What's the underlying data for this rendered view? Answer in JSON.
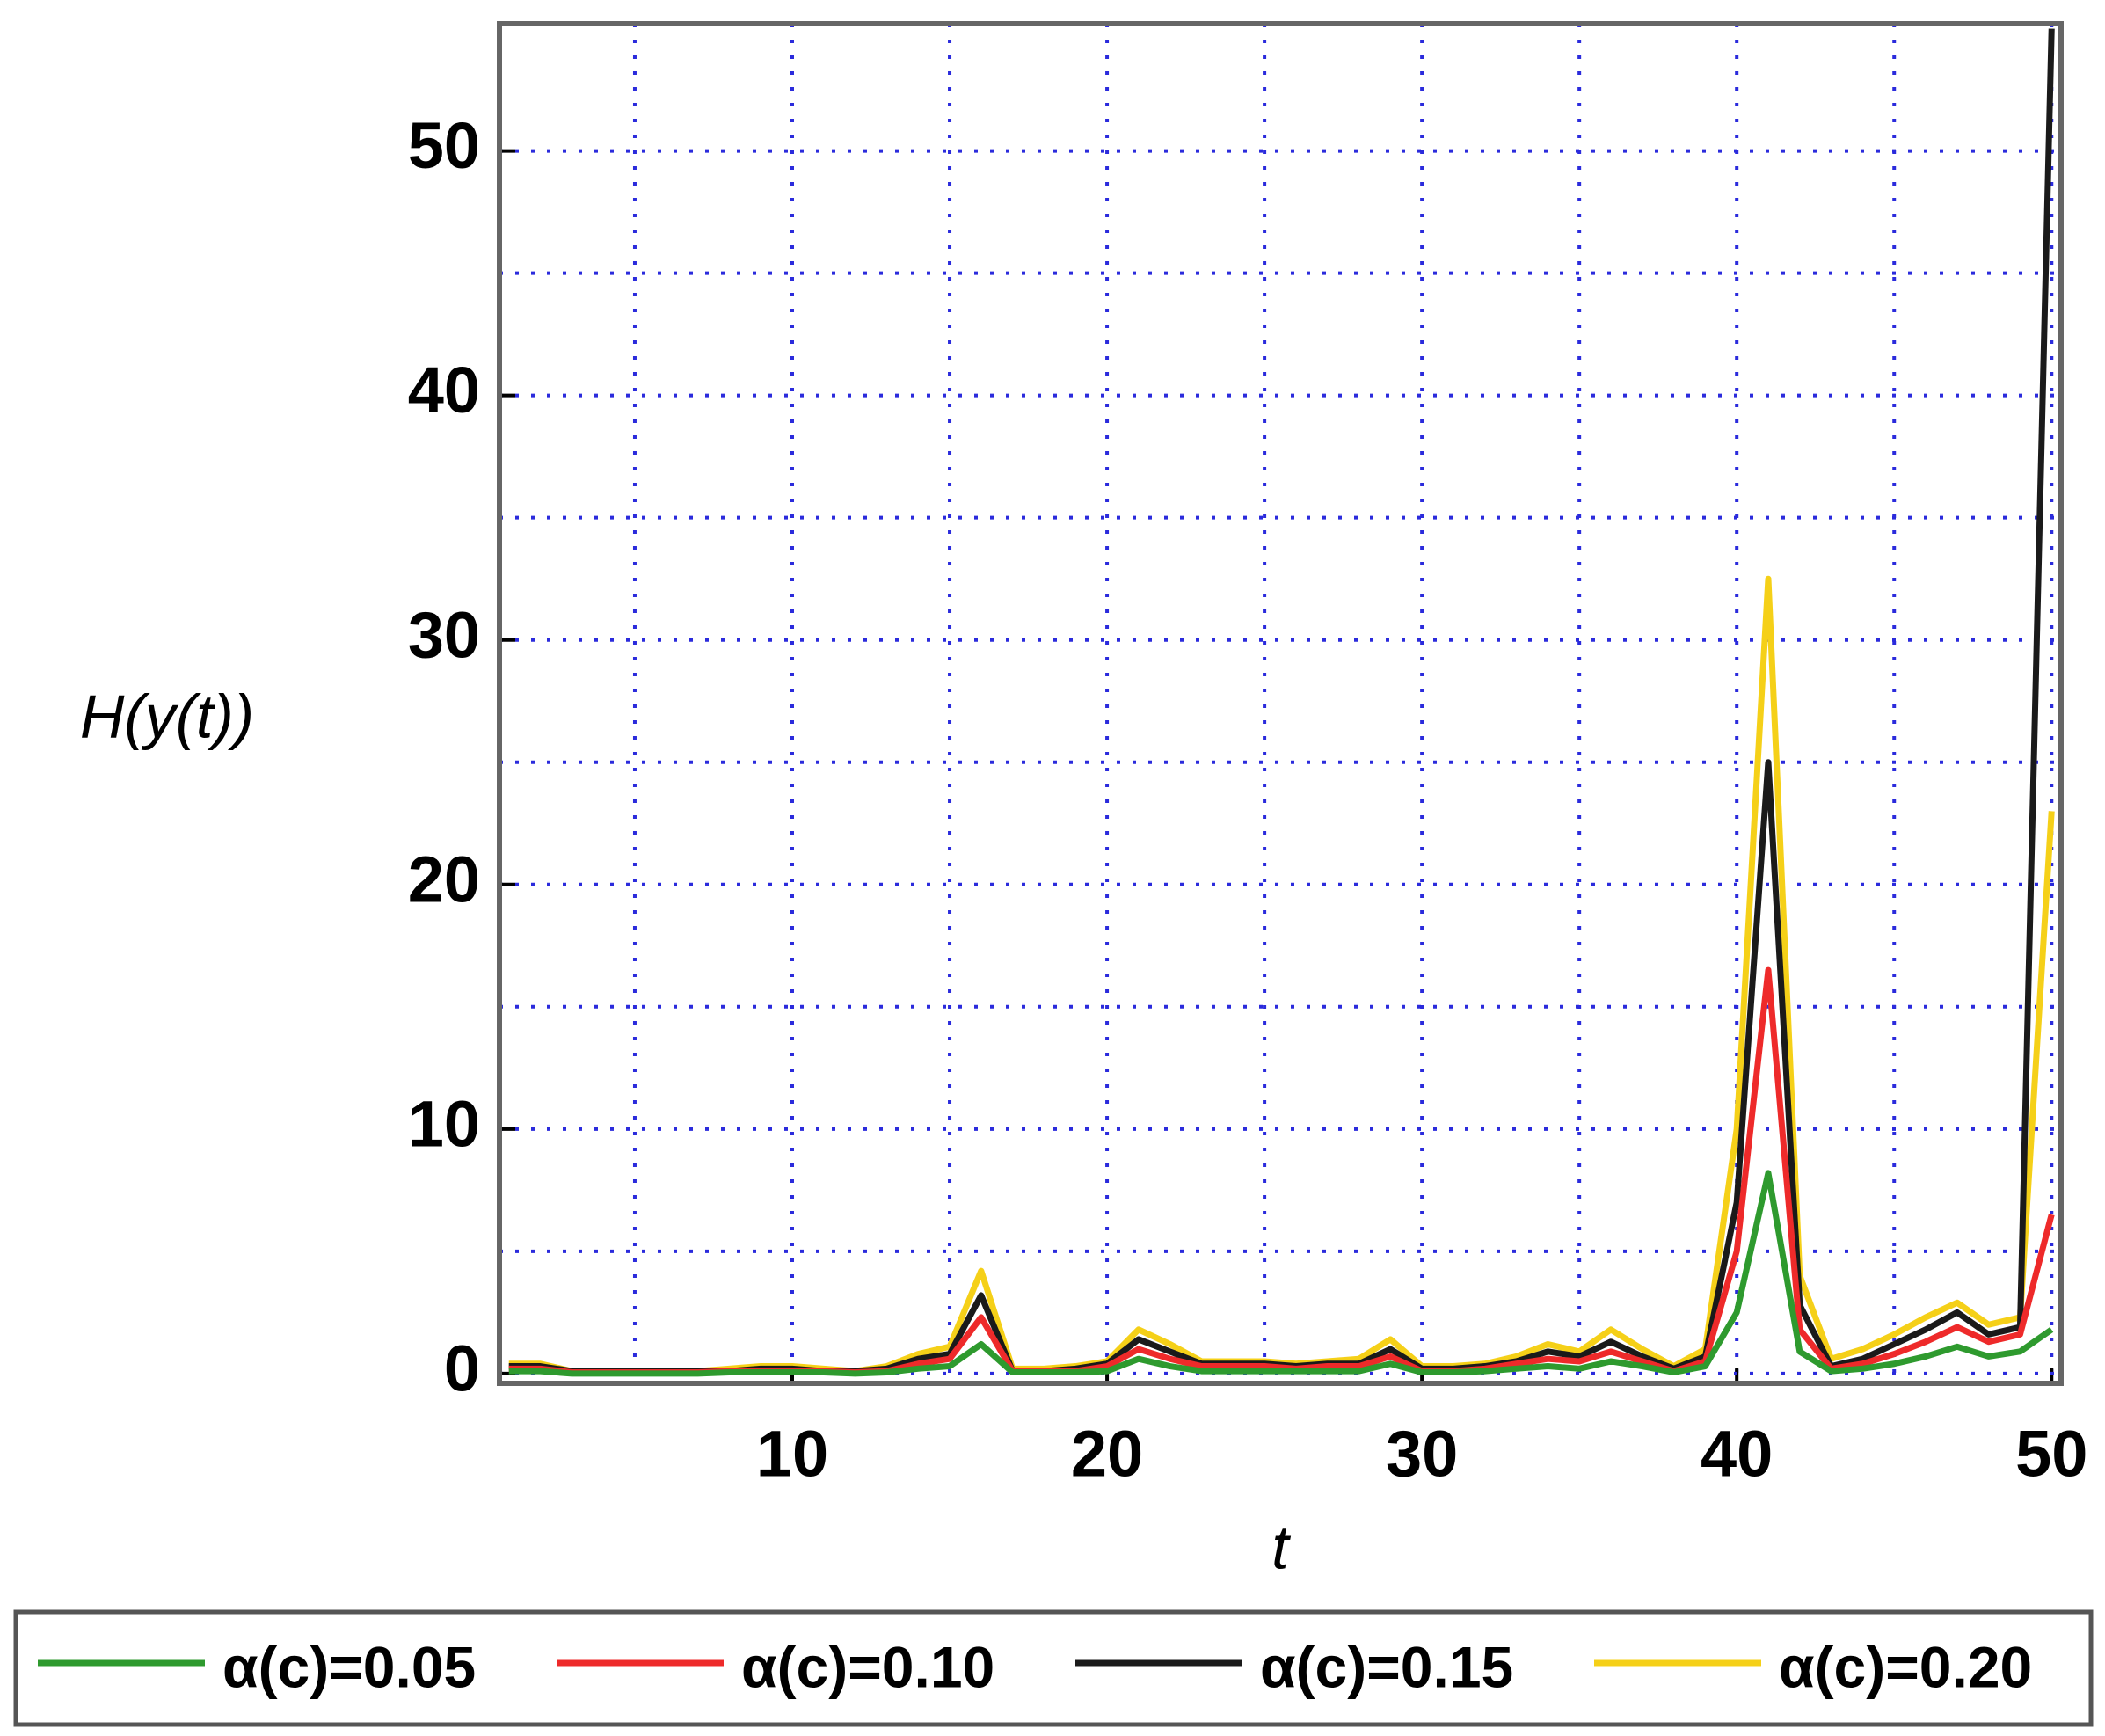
{
  "chart_data": {
    "type": "line",
    "x_label": "t",
    "y_label": "H(y(t))",
    "x": [
      1,
      2,
      3,
      4,
      5,
      6,
      7,
      8,
      9,
      10,
      11,
      12,
      13,
      14,
      15,
      16,
      17,
      18,
      19,
      20,
      21,
      22,
      23,
      24,
      25,
      26,
      27,
      28,
      29,
      30,
      31,
      32,
      33,
      34,
      35,
      36,
      37,
      38,
      39,
      40,
      41,
      42,
      43,
      44,
      45,
      46,
      47,
      48,
      49,
      50
    ],
    "series": [
      {
        "name": "α(c)=0.05",
        "color": "#2e9a2e",
        "values": [
          0.1,
          0.1,
          0,
          0,
          0,
          0,
          0,
          0.05,
          0.05,
          0.05,
          0.05,
          0,
          0.05,
          0.2,
          0.3,
          1.2,
          0.05,
          0.05,
          0.05,
          0.1,
          0.6,
          0.3,
          0.1,
          0.1,
          0.1,
          0.1,
          0.1,
          0.1,
          0.4,
          0.05,
          0.05,
          0.1,
          0.2,
          0.3,
          0.2,
          0.5,
          0.3,
          0.05,
          0.3,
          2.5,
          8.2,
          0.9,
          0.1,
          0.2,
          0.4,
          0.7,
          1.1,
          0.7,
          0.9,
          1.8
        ]
      },
      {
        "name": "α(c)=0.10",
        "color": "#ee2a2a",
        "values": [
          0.2,
          0.2,
          0.05,
          0.05,
          0.05,
          0.05,
          0.05,
          0.1,
          0.1,
          0.1,
          0.1,
          0.05,
          0.1,
          0.4,
          0.6,
          2.3,
          0.1,
          0.1,
          0.1,
          0.3,
          1.0,
          0.6,
          0.3,
          0.3,
          0.3,
          0.2,
          0.3,
          0.3,
          0.7,
          0.1,
          0.1,
          0.2,
          0.4,
          0.6,
          0.5,
          0.9,
          0.5,
          0.1,
          0.5,
          5,
          16.5,
          1.8,
          0.2,
          0.4,
          0.8,
          1.3,
          1.9,
          1.3,
          1.6,
          6.5
        ]
      },
      {
        "name": "α(c)=0.15",
        "color": "#1a1a1a",
        "values": [
          0.3,
          0.3,
          0.1,
          0.1,
          0.1,
          0.1,
          0.1,
          0.1,
          0.2,
          0.2,
          0.1,
          0.1,
          0.2,
          0.6,
          0.8,
          3.2,
          0.1,
          0.1,
          0.2,
          0.4,
          1.4,
          0.9,
          0.4,
          0.4,
          0.4,
          0.3,
          0.4,
          0.4,
          1.0,
          0.2,
          0.2,
          0.3,
          0.5,
          0.9,
          0.7,
          1.3,
          0.7,
          0.2,
          0.7,
          7,
          25,
          2.8,
          0.3,
          0.6,
          1.2,
          1.8,
          2.5,
          1.6,
          1.9,
          55
        ]
      },
      {
        "name": "α(c)=0.20",
        "color": "#f5d018",
        "values": [
          0.4,
          0.4,
          0.1,
          0.1,
          0.1,
          0.1,
          0.1,
          0.2,
          0.3,
          0.3,
          0.2,
          0.1,
          0.3,
          0.8,
          1.1,
          4.2,
          0.2,
          0.2,
          0.3,
          0.5,
          1.8,
          1.2,
          0.5,
          0.5,
          0.5,
          0.4,
          0.5,
          0.6,
          1.4,
          0.3,
          0.3,
          0.4,
          0.7,
          1.2,
          0.9,
          1.8,
          1.0,
          0.3,
          1.0,
          10,
          32.5,
          4,
          0.6,
          1.0,
          1.6,
          2.3,
          2.9,
          2.0,
          2.3,
          23
        ]
      }
    ],
    "xlim": [
      0.7,
      50.3
    ],
    "ylim": [
      -0.4,
      55.2
    ],
    "xticks": [
      10,
      20,
      30,
      40,
      50
    ],
    "yticks": [
      0,
      10,
      20,
      30,
      40,
      50
    ],
    "x_minor_grid": [
      5,
      15,
      25,
      35,
      45
    ],
    "y_minor_grid": [
      5,
      15,
      25,
      35,
      45
    ],
    "grid": true,
    "grid_color": "#2b2bdc",
    "legend": "bottom"
  }
}
